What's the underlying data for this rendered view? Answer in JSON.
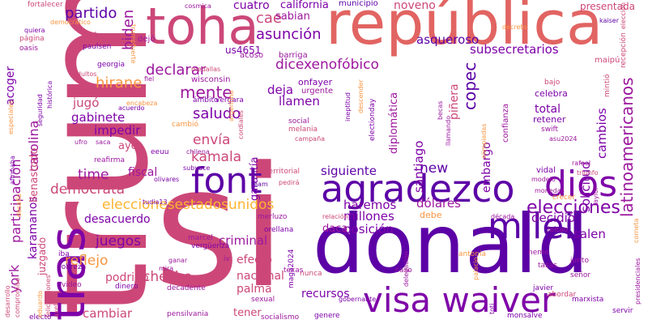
{
  "word_cloud": {
    "palette": {
      "pink": "#cc4778",
      "purple": "#7e03a8",
      "indigo": "#5c01a6",
      "violet": "#9c179e",
      "orange": "#f89540",
      "amber": "#fdb42f",
      "coral": "#e16462",
      "navy": "#2b0594",
      "light_orange": "#f0a04b"
    },
    "words": {
      "trump": "trump",
      "si": "si",
      "donald": "donald",
      "republica": "república",
      "toha": "toha",
      "visa_waiver": "visa waiver",
      "tras": "tras",
      "agradezco": "agradezco",
      "font": "font",
      "dios": "dios",
      "milei": "milei",
      "elecciones": "elecciones",
      "latinoamericanos": "latinoamericanos",
      "eleccionesestadosunidos": "eleccionesestadosunidos",
      "partido": "partido",
      "biden": "biden",
      "asuncion": "asunción",
      "cae": "cae",
      "sabian": "sabian",
      "cuatro": "cuatro",
      "california": "california",
      "municipio": "municipio",
      "noveno": "noveno",
      "presentada": "presentada",
      "fortalecer": "fortalecer",
      "cosmica": "cosmica",
      "declarar": "declarar",
      "us4651": "us4651",
      "dicexenofobico": "dicexenofóbico",
      "asqueroso": "asqueroso",
      "subsecretarios": "subsecretarios",
      "hirane": "hirane",
      "mente": "mente",
      "deja": "deja",
      "copec": "copec",
      "saludo": "saludo",
      "jugo": "jugó",
      "kamala": "kamala",
      "envia": "envía",
      "impedir": "impedir",
      "gabinete": "gabinete",
      "participacion": "participación",
      "carolina": "carolina",
      "time": "time",
      "fiscal": "fiscal",
      "ayer": "ayer",
      "democrata": "demócrata",
      "new": "new",
      "siguiente": "siguiente",
      "haremos": "haremos",
      "millones": "millones",
      "dolares": "dólares",
      "posicion": "posición",
      "daca": "daca",
      "salen": "salen",
      "decidio": "decidió",
      "solicitud": "solicitud",
      "cambios": "cambios",
      "total": "total",
      "llamen": "llamen",
      "santiago": "santiago",
      "embargo": "embargo",
      "pinera": "piñera",
      "york": "york",
      "juegos": "juegos",
      "reflejo": "reflejo",
      "desacuerdo": "desacuerdo",
      "criminal": "criminal",
      "efecto": "efecto",
      "nacional": "nacional",
      "podrido": "podrido",
      "checho": "checho",
      "palma": "palma",
      "cambiar": "cambiar",
      "genocida": "genocida",
      "tener": "tener",
      "recursos": "recursos",
      "acoger": "acoger",
      "karamanos": "karamanos",
      "llenastodo": "llenastodo",
      "juzgado": "juzgado",
      "garantia": "garantía",
      "diplomatica": "diplomática",
      "onfayer": "onfayer",
      "urgente": "urgente",
      "barriga": "barriga",
      "wisconsin": "wisconsin",
      "acoso": "acoso",
      "celebra": "celebra",
      "retener": "retener",
      "confianza": "confianza",
      "mintio": "mintió",
      "bajo": "bajo",
      "recepcion": "recepción",
      "maipu": "maipú",
      "eleccion": "elección",
      "kaiser": "kaiser",
      "quiera": "quiera",
      "pagina": "página",
      "oasis": "oasis",
      "paulsen": "paulsen",
      "poder": "poder",
      "dejo": "dejó",
      "medallas": "medallas",
      "georgia": "georgia",
      "adultos": "adultos",
      "fiel": "fiel",
      "encabeza": "encabeza",
      "acuerdo": "acuerdo",
      "historica": "histórica",
      "seguridad": "seguridad",
      "especiales": "especiales",
      "ambito": "ámbito",
      "vergara": "vergara",
      "argentina": "argentina",
      "electionday": "electionday",
      "cordiales": "cordiales",
      "cambio": "cambió",
      "social": "social",
      "melania": "melania",
      "campana": "campaña",
      "ineptitud": "ineptitud",
      "becas": "becas",
      "eeuu": "eeuu",
      "saca": "saca",
      "ufro": "ufro",
      "chilena": "chilena",
      "reafirma": "reafirma",
      "subyace": "subyace",
      "olivares": "olivares",
      "tudia13": "tudia13",
      "pedira": "pedirá",
      "territorial": "territorial",
      "team": "team",
      "vidal": "vidal",
      "triunfo": "triunfo",
      "swift": "swift",
      "asu2024": "asu2024",
      "rafael": "rafael",
      "modelo": "modelo",
      "taylor": "taylor",
      "crecer": "crecer",
      "monedas": "monedas",
      "leitao": "leitao",
      "decada": "década",
      "relacion": "relación",
      "debe": "debe",
      "merluzo": "merluzo",
      "orellana": "orellana",
      "marcel": "marcel",
      "verguenza": "vergüenza",
      "iv": "iv",
      "ganar": "ganar",
      "mira": "mira",
      "dinero": "dinero",
      "video": "video",
      "decadente": "decadente",
      "pobreza": "pobreza",
      "iba": "iba",
      "nunca": "nunca",
      "texas": "texas",
      "maga2024": "maga2024",
      "sexual": "sexual",
      "socialismo": "socialismo",
      "pensilvania": "pensilvania",
      "electo": "electo",
      "genere": "genere",
      "gobernante": "gobernante",
      "caso": "caso",
      "antonia": "antonia",
      "palacio": "palacio",
      "delegacion": "delegación",
      "monsalve": "monsalve",
      "marxista": "marxista",
      "servir": "servir",
      "abordar": "abordar",
      "senor": "señor",
      "javier": "javier",
      "tasas": "tasas",
      "junto": "junto",
      "neme": "neme",
      "presidenciales": "presidenciales",
      "corneta": "corneta",
      "toti": "toti",
      "desarrollo": "desarrollo",
      "compromiso": "compromiso",
      "eduardo": "eduardo",
      "felicitaciones": "felicitaciones",
      "axel": "axel",
      "desafio": "desafío",
      "afirmaba": "afirmaba",
      "llamando": "llamando",
      "olimpiadas": "olimpiadas",
      "democratico": "democrático",
      "trumpfuerte": "trumpfuerte",
      "decreto": "decreto",
      "descender": "descender"
    }
  }
}
